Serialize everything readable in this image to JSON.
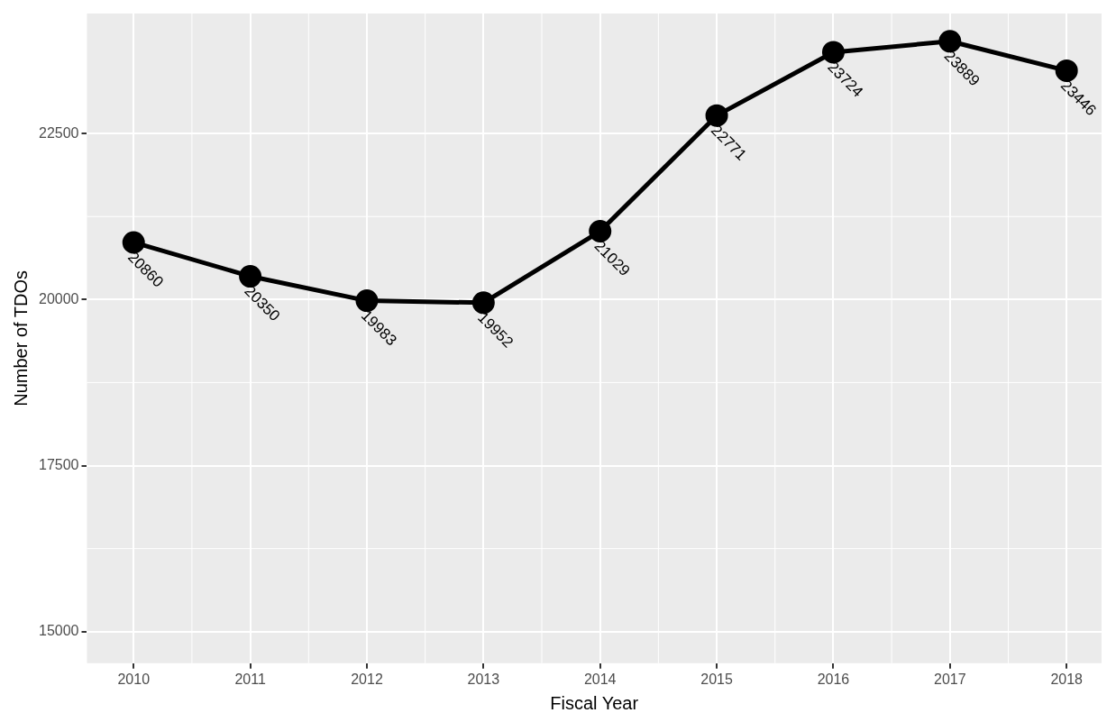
{
  "chart_data": {
    "type": "line",
    "xlabel": "Fiscal Year",
    "ylabel": "Number of TDOs",
    "x": [
      2010,
      2011,
      2012,
      2013,
      2014,
      2015,
      2016,
      2017,
      2018
    ],
    "series": [
      {
        "color": "#000000",
        "values": [
          20860,
          20350,
          19983,
          19952,
          21029,
          22771,
          23724,
          23889,
          23446
        ]
      }
    ],
    "xlim": [
      2009.6,
      2018.3
    ],
    "xticks": [
      2010,
      2011,
      2012,
      2013,
      2014,
      2015,
      2016,
      2017,
      2018
    ],
    "ylim": [
      14524,
      24307
    ],
    "yticks": [
      15000,
      17500,
      20000,
      22500
    ],
    "grid": true,
    "legend": false,
    "marker": "circle",
    "line_style": "solid",
    "data_labels": true
  }
}
